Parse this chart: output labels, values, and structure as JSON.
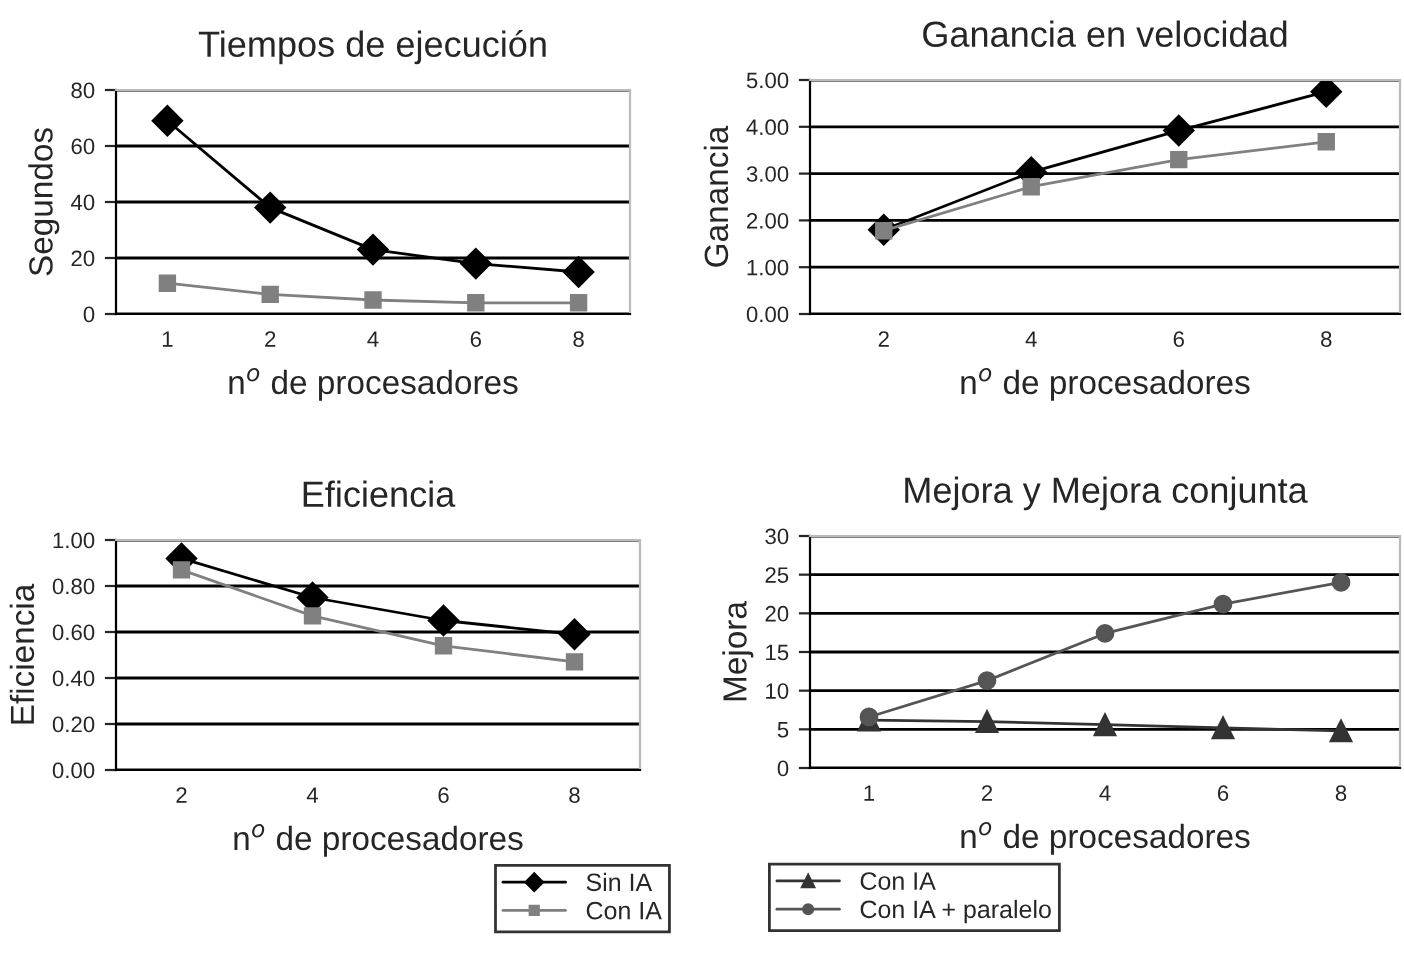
{
  "chart_data": [
    {
      "type": "line",
      "title": "Tiempos de ejecución",
      "ylabel": "Segundos",
      "xlabel": "n$^{o}$ de procesadores",
      "categories": [
        "1",
        "2",
        "4",
        "6",
        "8"
      ],
      "ylim": [
        0,
        80
      ],
      "yticks": [
        0,
        20,
        40,
        60,
        80
      ],
      "grid": "y",
      "series": [
        {
          "color": "#000000",
          "marker": "diamond",
          "values": [
            69,
            38,
            23,
            18,
            15
          ]
        },
        {
          "color": "#808080",
          "marker": "square",
          "values": [
            11,
            7,
            5,
            4,
            4
          ]
        }
      ]
    },
    {
      "type": "line",
      "title": "Ganancia en velocidad",
      "ylabel": "Ganancia",
      "xlabel": "n$^{o}$ de procesadores",
      "categories": [
        "2",
        "4",
        "6",
        "8"
      ],
      "ylim": [
        0,
        5
      ],
      "yticks": [
        {
          "value": 0,
          "label": "0.00"
        },
        {
          "value": 1,
          "label": "1.00"
        },
        {
          "value": 2,
          "label": "2.00"
        },
        {
          "value": 3,
          "label": "3.00"
        },
        {
          "value": 4,
          "label": "4.00"
        },
        {
          "value": 5,
          "label": "5.00"
        }
      ],
      "grid": "y",
      "series": [
        {
          "color": "#000000",
          "marker": "diamond",
          "values": [
            1.8,
            3.03,
            3.92,
            4.75
          ]
        },
        {
          "color": "#808080",
          "marker": "square",
          "values": [
            1.78,
            2.72,
            3.3,
            3.68
          ]
        }
      ]
    },
    {
      "type": "line",
      "title": "Eficiencia",
      "ylabel": "Eficiencia",
      "xlabel": "n$^{o}$ de procesadores",
      "categories": [
        "2",
        "4",
        "6",
        "8"
      ],
      "ylim": [
        0,
        1
      ],
      "yticks": [
        {
          "value": 0,
          "label": "0.00"
        },
        {
          "value": 0.2,
          "label": "0.20"
        },
        {
          "value": 0.4,
          "label": "0.40"
        },
        {
          "value": 0.6,
          "label": "0.60"
        },
        {
          "value": 0.8,
          "label": "0.80"
        },
        {
          "value": 1,
          "label": "1.00"
        }
      ],
      "grid": "y",
      "legend": "bottom right",
      "series": [
        {
          "name": "Sin IA",
          "color": "#000000",
          "marker": "diamond",
          "values": [
            0.92,
            0.75,
            0.65,
            0.59
          ]
        },
        {
          "name": "Con IA",
          "color": "#808080",
          "marker": "square",
          "values": [
            0.87,
            0.67,
            0.54,
            0.47
          ]
        }
      ]
    },
    {
      "type": "line",
      "title": "Mejora y Mejora conjunta",
      "ylabel": "Mejora",
      "xlabel": "n$^{o}$ de procesadores",
      "categories": [
        "1",
        "2",
        "4",
        "6",
        "8"
      ],
      "ylim": [
        0,
        30
      ],
      "yticks": [
        0,
        5,
        10,
        15,
        20,
        25,
        30
      ],
      "grid": "y",
      "legend": "bottom left",
      "series": [
        {
          "name": "Con IA",
          "color": "#333333",
          "marker": "triangle",
          "values": [
            6.2,
            6.0,
            5.6,
            5.2,
            4.8
          ]
        },
        {
          "name": "Con IA + paralelo",
          "color": "#555555",
          "marker": "circle",
          "values": [
            6.6,
            11.3,
            17.4,
            21.2,
            24.0
          ]
        }
      ]
    }
  ]
}
